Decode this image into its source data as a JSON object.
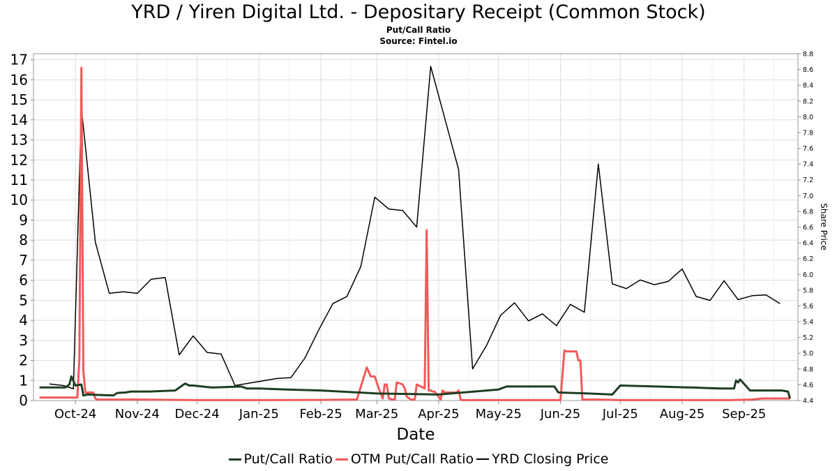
{
  "chart_data": {
    "type": "line",
    "title": "YRD / Yiren Digital Ltd. - Depositary Receipt (Common Stock)",
    "subtitle": "Put/Call Ratio",
    "source": "Source: Fintel.io",
    "xlabel": "Date",
    "y2label": "Share Price",
    "xlim": [
      "2024-09-10",
      "2025-09-28"
    ],
    "x_ticks": [
      {
        "date": "2024-10-01",
        "label": "Oct-24"
      },
      {
        "date": "2024-11-01",
        "label": "Nov-24"
      },
      {
        "date": "2024-12-01",
        "label": "Dec-24"
      },
      {
        "date": "2025-01-01",
        "label": "Jan-25"
      },
      {
        "date": "2025-02-01",
        "label": "Feb-25"
      },
      {
        "date": "2025-03-01",
        "label": "Mar-25"
      },
      {
        "date": "2025-04-01",
        "label": "Apr-25"
      },
      {
        "date": "2025-05-01",
        "label": "May-25"
      },
      {
        "date": "2025-06-01",
        "label": "Jun-25"
      },
      {
        "date": "2025-07-01",
        "label": "Jul-25"
      },
      {
        "date": "2025-08-01",
        "label": "Aug-25"
      },
      {
        "date": "2025-09-01",
        "label": "Sep-25"
      }
    ],
    "ylim": [
      0,
      17.3
    ],
    "y_ticks": [
      0,
      1,
      2,
      3,
      4,
      5,
      6,
      7,
      8,
      9,
      10,
      11,
      12,
      13,
      14,
      15,
      16,
      17
    ],
    "y2lim": [
      4.4,
      8.8
    ],
    "y2_ticks": [
      "4.4",
      "4.6",
      "4.8",
      "5.0",
      "5.2",
      "5.4",
      "5.6",
      "5.8",
      "6.0",
      "6.2",
      "6.4",
      "6.6",
      "6.8",
      "7.0",
      "7.2",
      "7.4",
      "7.6",
      "7.8",
      "8.0",
      "8.2",
      "8.4",
      "8.6",
      "8.8"
    ],
    "grid": true,
    "legend_position": "bottom",
    "series": [
      {
        "name": "Put/Call Ratio",
        "color": "#1e3d22",
        "axis": "left",
        "x": [
          "2024-09-13",
          "2024-09-26",
          "2024-09-28",
          "2024-09-29",
          "2024-10-01",
          "2024-10-04",
          "2024-10-05",
          "2024-10-07",
          "2024-10-20",
          "2024-10-22",
          "2024-10-26",
          "2024-10-29",
          "2024-11-07",
          "2024-11-20",
          "2024-11-25",
          "2024-11-27",
          "2024-11-29",
          "2024-12-08",
          "2024-12-10",
          "2024-12-23",
          "2024-12-26",
          "2025-01-01",
          "2025-01-15",
          "2025-02-01",
          "2025-03-01",
          "2025-04-01",
          "2025-05-01",
          "2025-05-05",
          "2025-05-29",
          "2025-05-31",
          "2025-06-15",
          "2025-06-27",
          "2025-07-01",
          "2025-07-19",
          "2025-08-04",
          "2025-08-06",
          "2025-08-20",
          "2025-08-27",
          "2025-08-28",
          "2025-08-29",
          "2025-08-30",
          "2025-09-04",
          "2025-09-20",
          "2025-09-23",
          "2025-09-24"
        ],
        "y": [
          0.65,
          0.65,
          0.8,
          1.2,
          0.75,
          0.8,
          0.25,
          0.3,
          0.25,
          0.38,
          0.4,
          0.45,
          0.45,
          0.5,
          0.85,
          0.75,
          0.75,
          0.65,
          0.65,
          0.7,
          0.6,
          0.6,
          0.55,
          0.5,
          0.35,
          0.3,
          0.55,
          0.7,
          0.7,
          0.4,
          0.35,
          0.3,
          0.75,
          0.7,
          0.65,
          0.65,
          0.6,
          0.6,
          1.0,
          0.9,
          1.05,
          0.5,
          0.5,
          0.45,
          0.1
        ]
      },
      {
        "name": "OTM Put/Call Ratio",
        "color": "#f05a5a",
        "axis": "left",
        "x": [
          "2024-09-13",
          "2024-10-02",
          "2024-10-03",
          "2024-10-04",
          "2024-10-05",
          "2024-10-06",
          "2024-10-10",
          "2024-10-11",
          "2024-10-12",
          "2024-10-15",
          "2024-11-01",
          "2024-12-01",
          "2025-01-01",
          "2025-02-01",
          "2025-02-19",
          "2025-02-24",
          "2025-02-26",
          "2025-02-28",
          "2025-03-02",
          "2025-03-04",
          "2025-03-05",
          "2025-03-06",
          "2025-03-07",
          "2025-03-09",
          "2025-03-10",
          "2025-03-11",
          "2025-03-14",
          "2025-03-15",
          "2025-03-16",
          "2025-03-18",
          "2025-03-20",
          "2025-03-21",
          "2025-03-23",
          "2025-03-24",
          "2025-03-25",
          "2025-03-26",
          "2025-03-27",
          "2025-03-28",
          "2025-03-29",
          "2025-03-30",
          "2025-04-02",
          "2025-04-03",
          "2025-04-04",
          "2025-04-05",
          "2025-04-06",
          "2025-04-10",
          "2025-04-11",
          "2025-04-12",
          "2025-04-13",
          "2025-05-01",
          "2025-06-01",
          "2025-06-03",
          "2025-06-04",
          "2025-06-05",
          "2025-06-09",
          "2025-06-10",
          "2025-06-11",
          "2025-06-12",
          "2025-06-20",
          "2025-07-01",
          "2025-08-01",
          "2025-08-25",
          "2025-09-05",
          "2025-09-10",
          "2025-09-24"
        ],
        "y": [
          0.15,
          0.15,
          2.1,
          16.6,
          1.5,
          0.4,
          0.4,
          0.1,
          0.05,
          0.05,
          0.05,
          0.02,
          0.02,
          0.03,
          0.05,
          1.65,
          1.2,
          1.2,
          0.6,
          0.1,
          0.8,
          0.8,
          0.1,
          0.05,
          0.05,
          0.9,
          0.8,
          0.6,
          0.2,
          0.05,
          0.05,
          0.8,
          0.7,
          0.65,
          0.6,
          8.5,
          0.5,
          0.5,
          0.45,
          0.45,
          0.05,
          0.5,
          0.4,
          0.4,
          0.4,
          0.4,
          0.5,
          0.05,
          0.02,
          0.02,
          0.02,
          2.5,
          2.45,
          2.45,
          2.45,
          2.0,
          2.0,
          0.05,
          0.05,
          0.02,
          0.02,
          0.02,
          0.05,
          0.1,
          0.1
        ]
      },
      {
        "name": "YRD Closing Price",
        "color": "#000000",
        "axis": "right",
        "x": [
          "2024-09-18",
          "2024-09-25",
          "2024-09-30",
          "2024-10-04",
          "2024-10-11",
          "2024-10-18",
          "2024-10-25",
          "2024-11-01",
          "2024-11-08",
          "2024-11-15",
          "2024-11-22",
          "2024-11-29",
          "2024-12-06",
          "2024-12-13",
          "2024-12-20",
          "2024-12-27",
          "2025-01-10",
          "2025-01-17",
          "2025-01-24",
          "2025-01-31",
          "2025-02-07",
          "2025-02-14",
          "2025-02-21",
          "2025-02-28",
          "2025-03-07",
          "2025-03-14",
          "2025-03-21",
          "2025-03-28",
          "2025-04-11",
          "2025-04-18",
          "2025-04-25",
          "2025-05-02",
          "2025-05-09",
          "2025-05-16",
          "2025-05-23",
          "2025-05-30",
          "2025-06-06",
          "2025-06-13",
          "2025-06-20",
          "2025-06-27",
          "2025-07-04",
          "2025-07-11",
          "2025-07-18",
          "2025-07-25",
          "2025-08-01",
          "2025-08-08",
          "2025-08-15",
          "2025-08-22",
          "2025-08-29",
          "2025-09-05",
          "2025-09-12",
          "2025-09-19"
        ],
        "y": [
          4.61,
          4.59,
          4.55,
          8.11,
          6.41,
          5.76,
          5.78,
          5.76,
          5.94,
          5.96,
          4.98,
          5.22,
          5.01,
          4.99,
          4.59,
          4.62,
          4.68,
          4.69,
          4.94,
          5.3,
          5.63,
          5.72,
          6.1,
          6.98,
          6.83,
          6.81,
          6.6,
          8.64,
          7.33,
          4.8,
          5.1,
          5.48,
          5.64,
          5.41,
          5.5,
          5.35,
          5.62,
          5.52,
          7.4,
          5.88,
          5.82,
          5.93,
          5.87,
          5.91,
          6.07,
          5.72,
          5.67,
          5.92,
          5.68,
          5.73,
          5.74,
          5.63
        ]
      }
    ]
  }
}
